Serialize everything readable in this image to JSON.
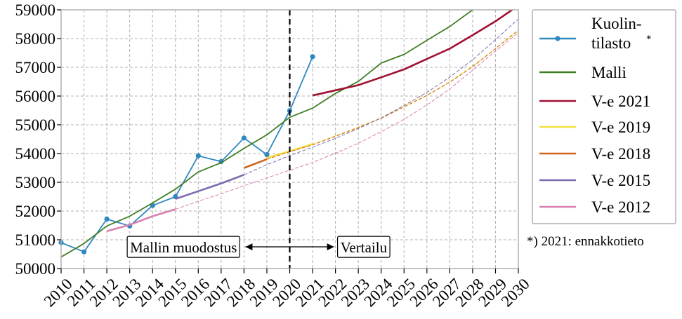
{
  "chart_data": {
    "type": "line",
    "x_range": [
      2010,
      2030
    ],
    "ylim": [
      50000,
      59000
    ],
    "yticks": [
      50000,
      51000,
      52000,
      53000,
      54000,
      55000,
      56000,
      57000,
      58000,
      59000
    ],
    "xticks": [
      2010,
      2011,
      2012,
      2013,
      2014,
      2015,
      2016,
      2017,
      2018,
      2019,
      2020,
      2021,
      2022,
      2023,
      2024,
      2025,
      2026,
      2027,
      2028,
      2029,
      2030
    ],
    "grid": true,
    "legend_position": "outside-right",
    "vertical_marker": {
      "x": 2020,
      "style": "dashed",
      "color": "#000000"
    },
    "series": [
      {
        "name": "Kuolin-tilasto",
        "legend_lines": [
          "Kuolin-",
          "tilasto"
        ],
        "legend_suffix": "*",
        "color": "#2f88c0",
        "markers": true,
        "x": [
          2010,
          2011,
          2012,
          2013,
          2014,
          2015,
          2016,
          2017,
          2018,
          2019,
          2020,
          2021
        ],
        "y": [
          50900,
          50580,
          51720,
          51480,
          52190,
          52500,
          53920,
          53720,
          54540,
          53960,
          55490,
          57370
        ]
      },
      {
        "name": "Malli",
        "color": "#3f7f24",
        "x": [
          2010,
          2011,
          2012,
          2013,
          2014,
          2015,
          2016,
          2017,
          2018,
          2019,
          2020,
          2021,
          2022,
          2023,
          2024,
          2025,
          2026,
          2027,
          2028
        ],
        "y": [
          50400,
          50870,
          51480,
          51820,
          52280,
          52760,
          53360,
          53680,
          54180,
          54650,
          55260,
          55580,
          56090,
          56510,
          57150,
          57450,
          57940,
          58420,
          59000
        ]
      },
      {
        "name": "V-e 2021",
        "color": "#a01031",
        "solid_from": 2021,
        "x": [
          2021,
          2022,
          2023,
          2024,
          2025,
          2026,
          2027,
          2028,
          2029,
          2030
        ],
        "y": [
          56020,
          56200,
          56380,
          56650,
          56930,
          57290,
          57650,
          58120,
          58600,
          59150
        ]
      },
      {
        "name": "V-e 2019",
        "color": "#f0e040",
        "solid_from": 2019,
        "x": [
          2019,
          2020,
          2021,
          2022,
          2023,
          2024,
          2025,
          2026,
          2027,
          2028,
          2029,
          2030
        ],
        "y": [
          53850,
          54080,
          54330,
          54620,
          54920,
          55250,
          55650,
          56030,
          56500,
          57050,
          57650,
          58250
        ]
      },
      {
        "name": "V-e 2018",
        "color": "#d0651a",
        "solid_from": 2018,
        "x": [
          2018,
          2019,
          2020,
          2021,
          2022,
          2023,
          2024,
          2025,
          2026,
          2027,
          2028,
          2029,
          2030
        ],
        "y": [
          53500,
          53800,
          54060,
          54300,
          54600,
          54900,
          55230,
          55620,
          56020,
          56480,
          57020,
          57650,
          58300
        ]
      },
      {
        "name": "V-e 2015",
        "color": "#7c6aaf",
        "solid_from": 2015,
        "x": [
          2015,
          2016,
          2017,
          2018,
          2019,
          2020,
          2021,
          2022,
          2023,
          2024,
          2025,
          2026,
          2027,
          2028,
          2029,
          2030
        ],
        "y": [
          52420,
          52690,
          52960,
          53260,
          53610,
          53930,
          54220,
          54530,
          54870,
          55240,
          55670,
          56130,
          56660,
          57260,
          57960,
          58680
        ]
      },
      {
        "name": "V-e 2012",
        "color": "#d97fae",
        "solid_from": 2012,
        "x": [
          2012,
          2013,
          2014,
          2015,
          2016,
          2017,
          2018,
          2019,
          2020,
          2021,
          2022,
          2023,
          2024,
          2025,
          2026,
          2027,
          2028,
          2029,
          2030
        ],
        "y": [
          51300,
          51520,
          51820,
          52060,
          52340,
          52600,
          52880,
          53150,
          53420,
          53690,
          54010,
          54360,
          54760,
          55190,
          55690,
          56250,
          56900,
          57560,
          58200
        ]
      }
    ],
    "annotations": {
      "left_label": "Mallin muodostus",
      "right_label": "Vertailu",
      "arrow_from": 2018,
      "arrow_to": 2022,
      "arrow_y": 50900
    },
    "footnote": "*) 2021: ennakkotieto"
  }
}
